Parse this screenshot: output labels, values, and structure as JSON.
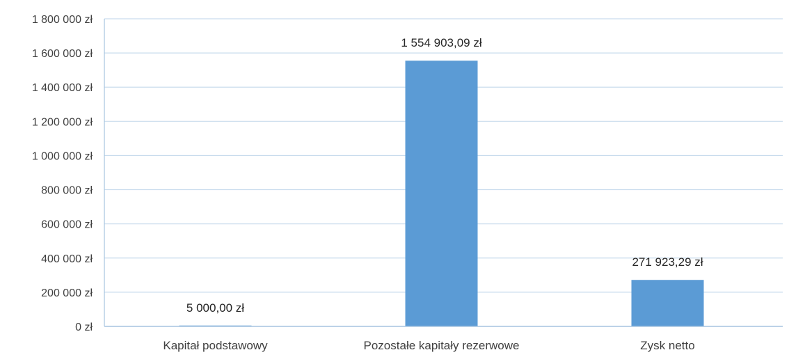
{
  "chart_data": {
    "type": "bar",
    "title": "",
    "xlabel": "",
    "ylabel": "",
    "categories": [
      "Kapitał podstawowy",
      "Pozostałe kapitały rezerwowe",
      "Zysk netto"
    ],
    "values": [
      5000.0,
      1554903.09,
      271923.29
    ],
    "data_labels": [
      "5 000,00 zł",
      "1 554 903,09 zł",
      "271 923,29 zł"
    ],
    "ylim": [
      0,
      1800000
    ],
    "yticks": [
      0,
      200000,
      400000,
      600000,
      800000,
      1000000,
      1200000,
      1400000,
      1600000,
      1800000
    ],
    "ytick_labels": [
      "0 zł",
      "200 000 zł",
      "400 000 zł",
      "600 000 zł",
      "800 000 zł",
      "1 000 000 zł",
      "1 200 000 zł",
      "1 400 000 zł",
      "1 600 000 zł",
      "1 800 000 zł"
    ],
    "grid": true,
    "legend": "none",
    "colors": {
      "bar": "#5b9bd5",
      "grid": "#c9dced",
      "axis": "#a6c4e0",
      "text": "#404040"
    }
  }
}
